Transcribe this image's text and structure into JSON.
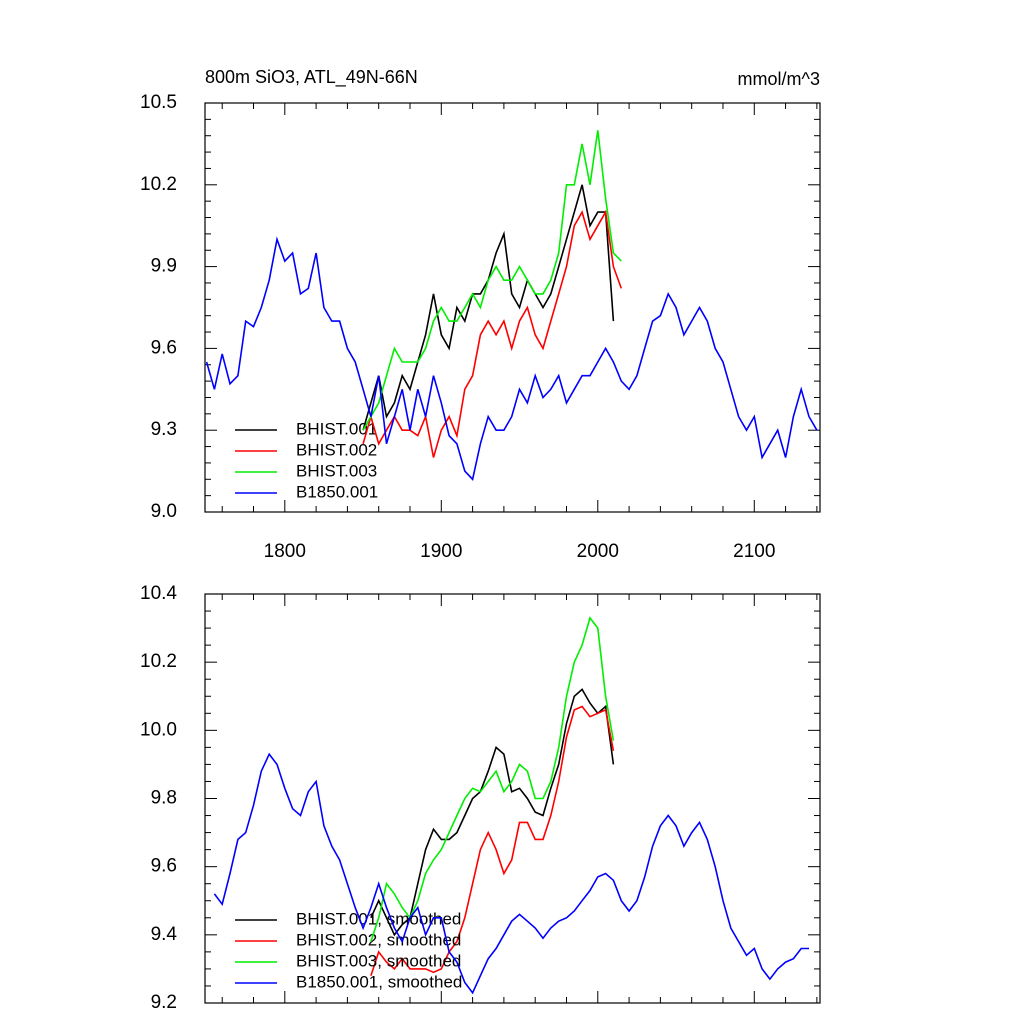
{
  "chart_data": [
    {
      "type": "line",
      "title": "800m SiO3, ATL_49N-66N",
      "units_label": "mmol/m^3",
      "x": [
        1750,
        1755,
        1760,
        1765,
        1770,
        1775,
        1780,
        1785,
        1790,
        1795,
        1800,
        1805,
        1810,
        1815,
        1820,
        1825,
        1830,
        1835,
        1840,
        1845,
        1850,
        1855,
        1860,
        1865,
        1870,
        1875,
        1880,
        1885,
        1890,
        1895,
        1900,
        1905,
        1910,
        1915,
        1920,
        1925,
        1930,
        1935,
        1940,
        1945,
        1950,
        1955,
        1960,
        1965,
        1970,
        1975,
        1980,
        1985,
        1990,
        1995,
        2000,
        2005,
        2010,
        2015,
        2020,
        2025,
        2030,
        2035,
        2040,
        2045,
        2050,
        2055,
        2060,
        2065,
        2070,
        2075,
        2080,
        2085,
        2090,
        2095,
        2100,
        2105,
        2110,
        2115,
        2120,
        2125,
        2130,
        2135,
        2140
      ],
      "xlim": [
        1749,
        2142
      ],
      "xticks": [
        1800,
        1900,
        2000,
        2100
      ],
      "ylim": [
        9.0,
        10.5
      ],
      "yticks": [
        {
          "value": 9.0,
          "label": "9.0"
        },
        9.3,
        9.6,
        9.9,
        10.2,
        10.5
      ],
      "legend": "lower left",
      "series": [
        {
          "name": "BHIST.001",
          "color": "#000000",
          "values": [
            null,
            null,
            null,
            null,
            null,
            null,
            null,
            null,
            null,
            null,
            null,
            null,
            null,
            null,
            null,
            null,
            null,
            null,
            null,
            null,
            9.3,
            9.4,
            9.5,
            9.35,
            9.4,
            9.5,
            9.45,
            9.55,
            9.65,
            9.8,
            9.65,
            9.6,
            9.75,
            9.7,
            9.8,
            9.8,
            9.85,
            9.95,
            10.02,
            9.8,
            9.75,
            9.85,
            9.8,
            9.75,
            9.8,
            9.9,
            10.0,
            10.1,
            10.2,
            10.05,
            10.1,
            10.1,
            9.7,
            null,
            null,
            null,
            null,
            null,
            null,
            null,
            null,
            null,
            null,
            null,
            null,
            null,
            null,
            null,
            null,
            null,
            null,
            null,
            null,
            null,
            null,
            null,
            null,
            null,
            null
          ]
        },
        {
          "name": "BHIST.002",
          "color": "#ff0000",
          "values": [
            null,
            null,
            null,
            null,
            null,
            null,
            null,
            null,
            null,
            null,
            null,
            null,
            null,
            null,
            null,
            null,
            null,
            null,
            null,
            null,
            9.25,
            9.35,
            9.25,
            9.3,
            9.35,
            9.3,
            9.3,
            9.28,
            9.35,
            9.2,
            9.3,
            9.35,
            9.28,
            9.45,
            9.5,
            9.65,
            9.7,
            9.65,
            9.7,
            9.6,
            9.7,
            9.75,
            9.65,
            9.6,
            9.7,
            9.8,
            9.9,
            10.05,
            10.1,
            10.0,
            10.05,
            10.1,
            9.9,
            9.82,
            null,
            null,
            null,
            null,
            null,
            null,
            null,
            null,
            null,
            null,
            null,
            null,
            null,
            null,
            null,
            null,
            null,
            null,
            null,
            null,
            null,
            null,
            null,
            null,
            null
          ]
        },
        {
          "name": "BHIST.003",
          "color": "#00ee00",
          "values": [
            null,
            null,
            null,
            null,
            null,
            null,
            null,
            null,
            null,
            null,
            null,
            null,
            null,
            null,
            null,
            null,
            null,
            null,
            null,
            null,
            9.3,
            9.35,
            9.4,
            9.5,
            9.6,
            9.55,
            9.55,
            9.55,
            9.6,
            9.7,
            9.75,
            9.7,
            9.7,
            9.75,
            9.8,
            9.75,
            9.85,
            9.9,
            9.85,
            9.85,
            9.9,
            9.85,
            9.8,
            9.8,
            9.85,
            9.95,
            10.2,
            10.2,
            10.35,
            10.2,
            10.4,
            10.15,
            9.95,
            9.92,
            null,
            null,
            null,
            null,
            null,
            null,
            null,
            null,
            null,
            null,
            null,
            null,
            null,
            null,
            null,
            null,
            null,
            null,
            null,
            null,
            null,
            null,
            null,
            null,
            null
          ]
        },
        {
          "name": "B1850.001",
          "color": "#0000ff",
          "values": [
            9.55,
            9.45,
            9.58,
            9.47,
            9.5,
            9.7,
            9.68,
            9.75,
            9.85,
            10.0,
            9.92,
            9.95,
            9.8,
            9.82,
            9.95,
            9.75,
            9.7,
            9.7,
            9.6,
            9.55,
            9.45,
            9.35,
            9.5,
            9.25,
            9.35,
            9.45,
            9.3,
            9.45,
            9.35,
            9.5,
            9.4,
            9.28,
            9.25,
            9.15,
            9.12,
            9.25,
            9.35,
            9.3,
            9.3,
            9.35,
            9.45,
            9.4,
            9.5,
            9.42,
            9.45,
            9.5,
            9.4,
            9.45,
            9.5,
            9.5,
            9.55,
            9.6,
            9.55,
            9.48,
            9.45,
            9.5,
            9.6,
            9.7,
            9.72,
            9.8,
            9.75,
            9.65,
            9.7,
            9.75,
            9.7,
            9.6,
            9.55,
            9.45,
            9.35,
            9.3,
            9.35,
            9.2,
            9.25,
            9.3,
            9.2,
            9.35,
            9.45,
            9.35,
            9.3
          ]
        }
      ]
    },
    {
      "type": "line",
      "x": [
        1750,
        1755,
        1760,
        1765,
        1770,
        1775,
        1780,
        1785,
        1790,
        1795,
        1800,
        1805,
        1810,
        1815,
        1820,
        1825,
        1830,
        1835,
        1840,
        1845,
        1850,
        1855,
        1860,
        1865,
        1870,
        1875,
        1880,
        1885,
        1890,
        1895,
        1900,
        1905,
        1910,
        1915,
        1920,
        1925,
        1930,
        1935,
        1940,
        1945,
        1950,
        1955,
        1960,
        1965,
        1970,
        1975,
        1980,
        1985,
        1990,
        1995,
        2000,
        2005,
        2010,
        2015,
        2020,
        2025,
        2030,
        2035,
        2040,
        2045,
        2050,
        2055,
        2060,
        2065,
        2070,
        2075,
        2080,
        2085,
        2090,
        2095,
        2100,
        2105,
        2110,
        2115,
        2120,
        2125,
        2130,
        2135,
        2140
      ],
      "xlim": [
        1749,
        2142
      ],
      "xticks": [
        1800,
        1900,
        2000,
        2100
      ],
      "show_xtick_labels": false,
      "ylim": [
        9.2,
        10.4
      ],
      "yticks": [
        9.2,
        9.4,
        9.6,
        9.8,
        {
          "value": 10.0,
          "label": "10.0"
        },
        10.2,
        10.4
      ],
      "legend": "lower left",
      "series": [
        {
          "name": "BHIST.001, smoothed",
          "color": "#000000",
          "values": [
            null,
            null,
            null,
            null,
            null,
            null,
            null,
            null,
            null,
            null,
            null,
            null,
            null,
            null,
            null,
            null,
            null,
            null,
            null,
            null,
            null,
            9.45,
            9.5,
            9.45,
            9.4,
            9.43,
            9.45,
            9.55,
            9.65,
            9.71,
            9.68,
            9.68,
            9.7,
            9.75,
            9.8,
            9.82,
            9.88,
            9.95,
            9.93,
            9.82,
            9.83,
            9.8,
            9.76,
            9.75,
            9.83,
            9.9,
            10.02,
            10.1,
            10.12,
            10.08,
            10.05,
            10.07,
            9.9,
            null,
            null,
            null,
            null,
            null,
            null,
            null,
            null,
            null,
            null,
            null,
            null,
            null,
            null,
            null,
            null,
            null,
            null,
            null,
            null,
            null,
            null,
            null,
            null,
            null,
            null
          ]
        },
        {
          "name": "BHIST.002, smoothed",
          "color": "#ff0000",
          "values": [
            null,
            null,
            null,
            null,
            null,
            null,
            null,
            null,
            null,
            null,
            null,
            null,
            null,
            null,
            null,
            null,
            null,
            null,
            null,
            null,
            null,
            9.28,
            9.35,
            9.32,
            9.3,
            9.33,
            9.3,
            9.3,
            9.3,
            9.29,
            9.3,
            9.35,
            9.38,
            9.45,
            9.55,
            9.65,
            9.7,
            9.65,
            9.58,
            9.62,
            9.73,
            9.73,
            9.68,
            9.68,
            9.75,
            9.85,
            9.98,
            10.06,
            10.07,
            10.04,
            10.05,
            10.06,
            9.94,
            null,
            null,
            null,
            null,
            null,
            null,
            null,
            null,
            null,
            null,
            null,
            null,
            null,
            null,
            null,
            null,
            null,
            null,
            null,
            null,
            null,
            null,
            null,
            null,
            null,
            null
          ]
        },
        {
          "name": "BHIST.003, smoothed",
          "color": "#00ee00",
          "values": [
            null,
            null,
            null,
            null,
            null,
            null,
            null,
            null,
            null,
            null,
            null,
            null,
            null,
            null,
            null,
            null,
            null,
            null,
            null,
            null,
            null,
            9.38,
            9.45,
            9.55,
            9.52,
            9.48,
            9.45,
            9.5,
            9.58,
            9.62,
            9.65,
            9.7,
            9.75,
            9.8,
            9.83,
            9.82,
            9.85,
            9.88,
            9.82,
            9.85,
            9.9,
            9.88,
            9.8,
            9.8,
            9.85,
            9.95,
            10.1,
            10.2,
            10.25,
            10.33,
            10.3,
            10.1,
            9.97,
            null,
            null,
            null,
            null,
            null,
            null,
            null,
            null,
            null,
            null,
            null,
            null,
            null,
            null,
            null,
            null,
            null,
            null,
            null,
            null,
            null,
            null,
            null,
            null,
            null,
            null
          ]
        },
        {
          "name": "B1850.001, smoothed",
          "color": "#0000ff",
          "values": [
            null,
            9.52,
            9.49,
            9.58,
            9.68,
            9.7,
            9.78,
            9.88,
            9.93,
            9.9,
            9.83,
            9.77,
            9.75,
            9.82,
            9.85,
            9.72,
            9.66,
            9.62,
            9.55,
            9.48,
            9.42,
            9.48,
            9.55,
            9.48,
            9.42,
            9.38,
            9.45,
            9.48,
            9.4,
            9.45,
            9.45,
            9.35,
            9.32,
            9.26,
            9.23,
            9.28,
            9.33,
            9.36,
            9.4,
            9.44,
            9.46,
            9.44,
            9.42,
            9.39,
            9.42,
            9.44,
            9.45,
            9.47,
            9.5,
            9.53,
            9.57,
            9.58,
            9.56,
            9.5,
            9.47,
            9.5,
            9.57,
            9.66,
            9.72,
            9.75,
            9.72,
            9.66,
            9.7,
            9.73,
            9.68,
            9.6,
            9.5,
            9.42,
            9.38,
            9.34,
            9.36,
            9.3,
            9.27,
            9.3,
            9.32,
            9.33,
            9.36,
            9.36,
            null
          ]
        }
      ]
    }
  ]
}
